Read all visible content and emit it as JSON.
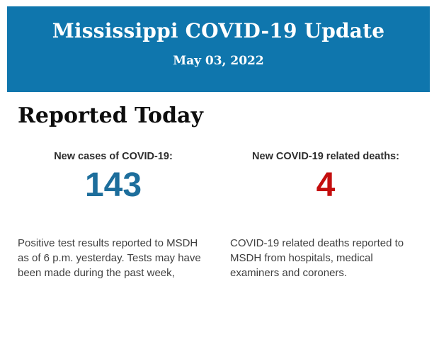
{
  "header": {
    "title": "Mississippi COVID-19 Update",
    "date": "May 03, 2022",
    "background_color": "#0f76ad",
    "text_color": "#ffffff"
  },
  "section": {
    "title": "Reported Today"
  },
  "stats": [
    {
      "label": "New cases of COVID-19:",
      "value": "143",
      "value_color": "#1d6e9c",
      "description": "Positive test results reported to MSDH as of 6 p.m. yesterday. Tests may have been made during the past week,"
    },
    {
      "label": "New COVID-19 related deaths:",
      "value": "4",
      "value_color": "#c40e0e",
      "description": "COVID-19 related deaths reported to MSDH from hospitals, medical examiners and coroners."
    }
  ]
}
